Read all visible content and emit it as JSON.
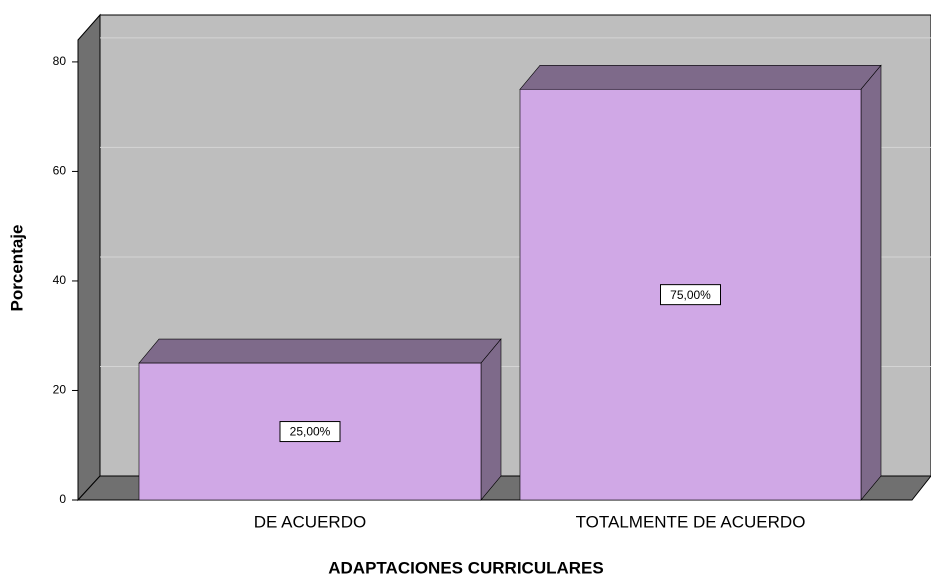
{
  "chart_data": {
    "type": "bar",
    "x_label": "ADAPTACIONES CURRICULARES",
    "y_label": "Porcentaje",
    "categories": [
      "DE ACUERDO",
      "TOTALMENTE DE ACUERDO"
    ],
    "values": [
      25,
      75
    ],
    "value_labels": [
      "25,00%",
      "75,00%"
    ],
    "color": "#d0a8e6",
    "ylim": [
      0,
      84
    ],
    "yticks": [
      0,
      20,
      40,
      60,
      80
    ],
    "grid": true
  }
}
